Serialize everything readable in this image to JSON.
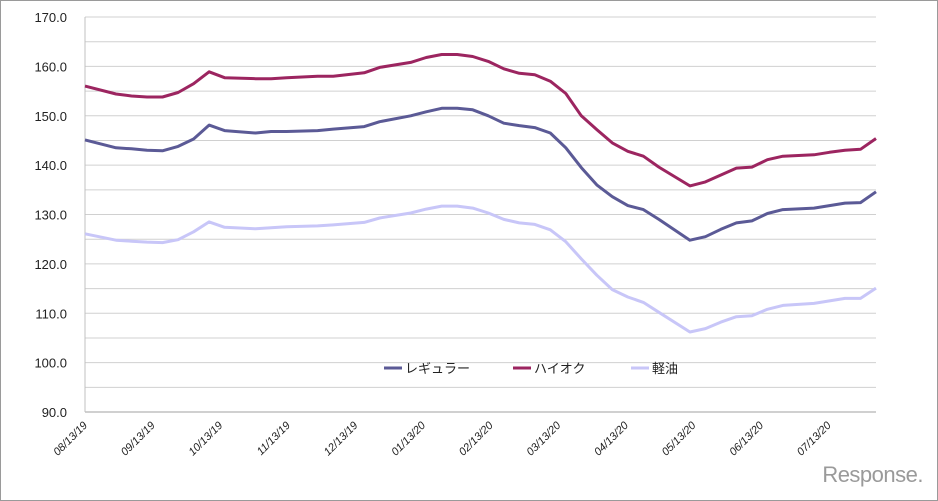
{
  "chart_data": {
    "type": "line",
    "title": "",
    "xlabel": "",
    "ylabel": "",
    "ylim": [
      90,
      170
    ],
    "yticks": [
      "90.0",
      "100.0",
      "110.0",
      "120.0",
      "130.0",
      "140.0",
      "150.0",
      "160.0",
      "170.0"
    ],
    "xlim_weeks": [
      0,
      51
    ],
    "xtick_labels": [
      "08/13/19",
      "09/13/19",
      "10/13/19",
      "11/13/19",
      "12/13/19",
      "01/13/20",
      "02/13/20",
      "03/13/20",
      "04/13/20",
      "05/13/20",
      "06/13/20",
      "07/13/20"
    ],
    "grid": true,
    "legend_position": "bottom-center",
    "x_weeks": [
      0,
      2,
      3,
      4,
      5,
      6,
      7,
      8,
      9,
      11,
      12,
      13,
      15,
      16,
      18,
      19,
      21,
      22,
      23,
      24,
      25,
      26,
      27,
      28,
      29,
      30,
      31,
      32,
      33,
      34,
      35,
      36,
      37,
      39,
      40,
      41,
      42,
      43,
      44,
      45,
      47,
      48,
      49,
      50,
      51
    ],
    "series": [
      {
        "name": "レギュラー",
        "color": "#5b5a96",
        "values": [
          145.1,
          143.5,
          143.3,
          143.0,
          142.9,
          143.8,
          145.3,
          148.1,
          147.0,
          146.5,
          146.8,
          146.8,
          147.0,
          147.3,
          147.8,
          148.8,
          150.0,
          150.8,
          151.5,
          151.5,
          151.2,
          150.0,
          148.5,
          148.0,
          147.6,
          146.5,
          143.5,
          139.5,
          136.0,
          133.6,
          131.8,
          131.0,
          129.0,
          124.8,
          125.5,
          127.0,
          128.3,
          128.7,
          130.2,
          131.0,
          131.3,
          131.8,
          132.3,
          132.4,
          134.6
        ]
      },
      {
        "name": "ハイオク",
        "color": "#9c2560",
        "values": [
          156.0,
          154.4,
          154.0,
          153.8,
          153.8,
          154.7,
          156.5,
          158.9,
          157.7,
          157.5,
          157.5,
          157.7,
          158.0,
          158.0,
          158.7,
          159.8,
          160.8,
          161.8,
          162.4,
          162.4,
          162.0,
          161.0,
          159.5,
          158.6,
          158.3,
          157.0,
          154.5,
          150.0,
          147.2,
          144.5,
          142.8,
          141.8,
          139.6,
          135.8,
          136.6,
          138.0,
          139.4,
          139.6,
          141.1,
          141.8,
          142.1,
          142.6,
          143.0,
          143.2,
          145.4
        ]
      },
      {
        "name": "軽油",
        "color": "#c8c6f8",
        "values": [
          126.1,
          124.8,
          124.6,
          124.4,
          124.3,
          124.9,
          126.5,
          128.5,
          127.4,
          127.1,
          127.3,
          127.5,
          127.7,
          127.9,
          128.4,
          129.3,
          130.3,
          131.1,
          131.7,
          131.7,
          131.3,
          130.3,
          129.0,
          128.3,
          128.0,
          126.9,
          124.5,
          121.0,
          117.7,
          114.8,
          113.3,
          112.2,
          110.2,
          106.2,
          106.9,
          108.2,
          109.3,
          109.5,
          110.8,
          111.6,
          112.0,
          112.5,
          113.0,
          113.0,
          115.1
        ]
      }
    ]
  },
  "logo": "Response."
}
